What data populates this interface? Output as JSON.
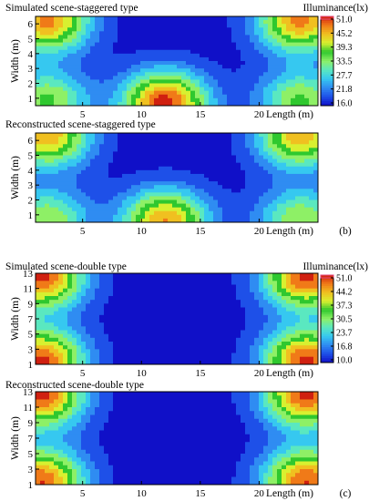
{
  "colors": {
    "colormap": [
      "#1010c8",
      "#1e50e8",
      "#2f8cf2",
      "#36c8f0",
      "#5ae8c0",
      "#8ef066",
      "#2fc82f",
      "#d8f030",
      "#f0c020",
      "#f07a18",
      "#d02010"
    ],
    "contour_line": "#222222",
    "colorbar_top_outline": "#e0407a"
  },
  "chart_data": [
    {
      "type": "heatmap",
      "id": "staggered-simulated",
      "title": "Simulated scene-staggered type",
      "xlabel": "Length (m)",
      "ylabel": "Width (m)",
      "xlim": [
        1,
        25
      ],
      "ylim": [
        0.5,
        6.5
      ],
      "xticks": [
        "5",
        "10",
        "15",
        "20"
      ],
      "yticks": [
        "1",
        "2",
        "3",
        "4",
        "5",
        "6"
      ],
      "colorbar": {
        "title": "Illuminance(lx)",
        "min": 16.0,
        "max": 51.0,
        "ticks": [
          "51.0",
          "45.2",
          "39.3",
          "33.5",
          "27.7",
          "21.8",
          "16.0"
        ]
      },
      "field": {
        "min": 16,
        "max": 51,
        "bumps": [
          {
            "x": 12,
            "y": 0.7,
            "value": 51.0
          },
          {
            "x": 2,
            "y": 6.2,
            "value": 47
          },
          {
            "x": 23.5,
            "y": 6.2,
            "value": 47
          },
          {
            "x": 2,
            "y": 0.8,
            "value": 36
          },
          {
            "x": 23.5,
            "y": 0.8,
            "value": 36
          }
        ]
      },
      "panel_tag": ""
    },
    {
      "type": "heatmap",
      "id": "staggered-reconstructed",
      "title": "Reconstructed scene-staggered type",
      "xlabel": "Length (m)",
      "ylabel": "Width (m)",
      "xlim": [
        1,
        25
      ],
      "ylim": [
        0.5,
        6.5
      ],
      "xticks": [
        "5",
        "10",
        "15",
        "20"
      ],
      "yticks": [
        "1",
        "2",
        "3",
        "4",
        "5",
        "6"
      ],
      "field": {
        "min": 16,
        "max": 51,
        "bumps": [
          {
            "x": 12,
            "y": 0.6,
            "value": 46
          },
          {
            "x": 2,
            "y": 6.3,
            "value": 45
          },
          {
            "x": 23.5,
            "y": 6.3,
            "value": 45
          },
          {
            "x": 2,
            "y": 0.7,
            "value": 35
          },
          {
            "x": 23.5,
            "y": 0.7,
            "value": 35
          }
        ]
      },
      "panel_tag": "(b)"
    },
    {
      "type": "heatmap",
      "id": "double-simulated",
      "title": "Simulated scene-double type",
      "xlabel": "Length (m)",
      "ylabel": "Width (m)",
      "xlim": [
        1,
        25
      ],
      "ylim": [
        1,
        13
      ],
      "xticks": [
        "5",
        "10",
        "15",
        "20"
      ],
      "yticks": [
        "1",
        "3",
        "5",
        "7",
        "9",
        "11",
        "13"
      ],
      "colorbar": {
        "title": "Illuminance(lx)",
        "min": 10.0,
        "max": 51.0,
        "ticks": [
          "51.0",
          "44.2",
          "37.3",
          "30.5",
          "23.7",
          "16.8",
          "10.0"
        ]
      },
      "field": {
        "min": 10,
        "max": 51,
        "bumps": [
          {
            "x": 1.5,
            "y": 12.5,
            "value": 50
          },
          {
            "x": 24,
            "y": 12.5,
            "value": 50
          },
          {
            "x": 1.5,
            "y": 1.5,
            "value": 50
          },
          {
            "x": 24,
            "y": 1.5,
            "value": 50
          }
        ]
      },
      "panel_tag": ""
    },
    {
      "type": "heatmap",
      "id": "double-reconstructed",
      "title": "Reconstructed scene-double type",
      "xlabel": "Length (m)",
      "ylabel": "Width (m)",
      "xlim": [
        1,
        25
      ],
      "ylim": [
        1,
        13
      ],
      "xticks": [
        "5",
        "10",
        "15",
        "20"
      ],
      "yticks": [
        "1",
        "3",
        "5",
        "7",
        "9",
        "11",
        "13"
      ],
      "field": {
        "min": 10,
        "max": 51,
        "bumps": [
          {
            "x": 1.5,
            "y": 12.6,
            "value": 50
          },
          {
            "x": 24,
            "y": 12.6,
            "value": 50
          },
          {
            "x": 1.5,
            "y": 1.4,
            "value": 49
          },
          {
            "x": 24,
            "y": 1.4,
            "value": 49
          }
        ]
      },
      "panel_tag": "(c)"
    }
  ]
}
